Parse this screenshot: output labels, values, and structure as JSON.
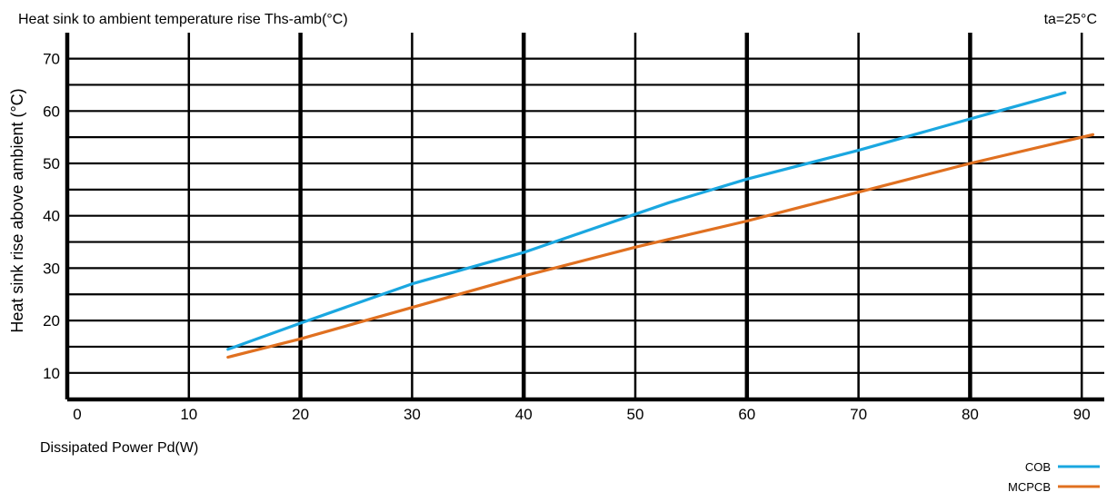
{
  "chart_data": {
    "type": "line",
    "title": "Heat sink to ambient temperature rise Ths-amb(°C)",
    "annotation": "ta=25°C",
    "xlabel": "Dissipated Power Pd(W)",
    "ylabel": "Heat sink rise above ambient (°C)",
    "xlim": [
      0,
      92
    ],
    "ylim": [
      5,
      75
    ],
    "x_ticks": [
      0,
      10,
      20,
      30,
      40,
      50,
      60,
      70,
      80,
      90
    ],
    "y_ticks": [
      10,
      20,
      30,
      40,
      50,
      60,
      70
    ],
    "x_ticks_bold": [
      0,
      20,
      40,
      60,
      80
    ],
    "legend_position": "bottom-right",
    "grid": true,
    "series": [
      {
        "name": "COB",
        "color": "#1aa7e0",
        "x": [
          13.5,
          20,
          30,
          40,
          53,
          60,
          70,
          80,
          88.5
        ],
        "y": [
          14.5,
          19.5,
          27,
          33,
          42.5,
          47,
          52.5,
          58.5,
          63.5
        ]
      },
      {
        "name": "MCPCB",
        "color": "#e07020",
        "x": [
          13.5,
          20,
          30,
          40,
          50,
          60,
          70,
          80,
          91
        ],
        "y": [
          13,
          16.5,
          22.5,
          28.5,
          34,
          39,
          44.5,
          50,
          55.5
        ]
      }
    ]
  }
}
